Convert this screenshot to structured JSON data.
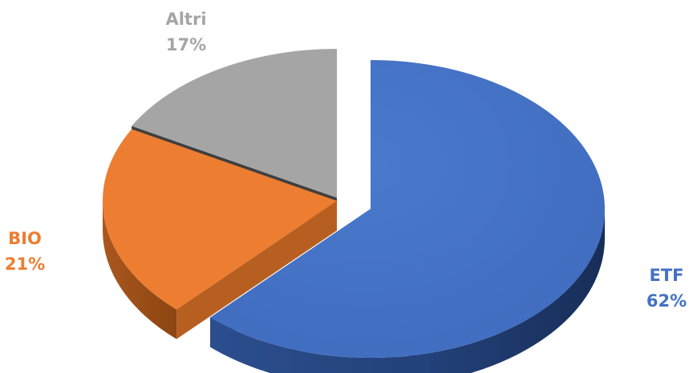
{
  "chart_data": {
    "type": "pie",
    "style": "3d-exploded",
    "slices": [
      {
        "name": "ETF",
        "value": 62,
        "value_label": "62%",
        "color": "#4472C4"
      },
      {
        "name": "BIO",
        "value": 21,
        "value_label": "21%",
        "color": "#ED7D31"
      },
      {
        "name": "Altri",
        "value": 17,
        "value_label": "17%",
        "color": "#A5A5A5"
      }
    ],
    "legend": "none",
    "labels_position": "outside"
  }
}
